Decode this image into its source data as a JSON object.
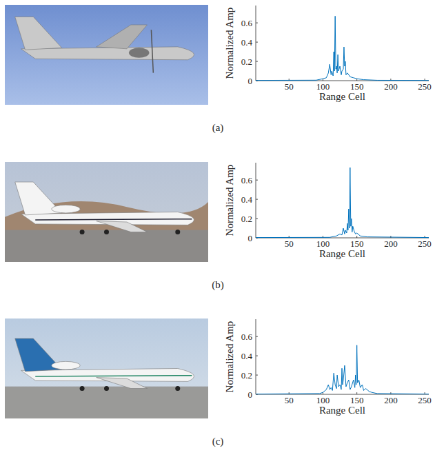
{
  "chart_data": [
    {
      "type": "line",
      "panel": "(a)",
      "x_label": "Range Cell",
      "y_label": "Normalized Amp",
      "color": "#0072bd",
      "xlim": [
        1,
        256
      ],
      "ylim": [
        0,
        0.78
      ],
      "xticks": [
        50,
        100,
        150,
        200,
        250
      ],
      "yticks": [
        0,
        0.2,
        0.4,
        0.6
      ],
      "x": [
        1,
        90,
        100,
        105,
        108,
        110,
        112,
        113,
        115,
        116,
        117,
        118,
        119,
        120,
        121,
        122,
        123,
        125,
        127,
        128,
        130,
        131,
        132,
        133,
        134,
        136,
        140,
        145,
        150,
        160,
        180,
        256
      ],
      "values": [
        0.003,
        0.005,
        0.02,
        0.03,
        0.08,
        0.17,
        0.06,
        0.1,
        0.05,
        0.3,
        0.1,
        0.67,
        0.12,
        0.15,
        0.08,
        0.27,
        0.1,
        0.15,
        0.06,
        0.1,
        0.12,
        0.35,
        0.15,
        0.2,
        0.06,
        0.08,
        0.04,
        0.03,
        0.02,
        0.01,
        0.004,
        0.003
      ]
    },
    {
      "type": "line",
      "panel": "(b)",
      "x_label": "Range Cell",
      "y_label": "Normalized Amp",
      "color": "#0072bd",
      "xlim": [
        1,
        256
      ],
      "ylim": [
        0,
        0.78
      ],
      "xticks": [
        50,
        100,
        150,
        200,
        250
      ],
      "yticks": [
        0,
        0.2,
        0.4,
        0.6
      ],
      "x": [
        1,
        110,
        120,
        125,
        128,
        130,
        132,
        133,
        135,
        136,
        137,
        138,
        139,
        140,
        141,
        142,
        143,
        144,
        146,
        148,
        150,
        155,
        165,
        256
      ],
      "values": [
        0.003,
        0.005,
        0.02,
        0.04,
        0.03,
        0.1,
        0.04,
        0.08,
        0.05,
        0.15,
        0.08,
        0.3,
        0.1,
        0.73,
        0.12,
        0.2,
        0.06,
        0.12,
        0.07,
        0.04,
        0.05,
        0.02,
        0.01,
        0.003
      ]
    },
    {
      "type": "line",
      "panel": "(c)",
      "x_label": "Range Cell",
      "y_label": "Normalized Amp",
      "color": "#0072bd",
      "xlim": [
        1,
        256
      ],
      "ylim": [
        0,
        0.78
      ],
      "xticks": [
        50,
        100,
        150,
        200,
        250
      ],
      "yticks": [
        0,
        0.2,
        0.4,
        0.6
      ],
      "x": [
        1,
        95,
        100,
        105,
        108,
        110,
        112,
        114,
        116,
        118,
        120,
        121,
        123,
        125,
        127,
        128,
        129,
        130,
        132,
        134,
        136,
        138,
        140,
        142,
        145,
        147,
        148,
        149,
        150,
        151,
        153,
        155,
        158,
        160,
        163,
        165,
        168,
        172,
        180,
        256
      ],
      "values": [
        0.003,
        0.008,
        0.02,
        0.05,
        0.1,
        0.05,
        0.07,
        0.04,
        0.22,
        0.1,
        0.06,
        0.2,
        0.08,
        0.1,
        0.05,
        0.27,
        0.1,
        0.15,
        0.3,
        0.08,
        0.12,
        0.15,
        0.05,
        0.08,
        0.15,
        0.07,
        0.2,
        0.1,
        0.51,
        0.12,
        0.15,
        0.07,
        0.1,
        0.04,
        0.06,
        0.05,
        0.03,
        0.02,
        0.008,
        0.003
      ]
    }
  ]
}
